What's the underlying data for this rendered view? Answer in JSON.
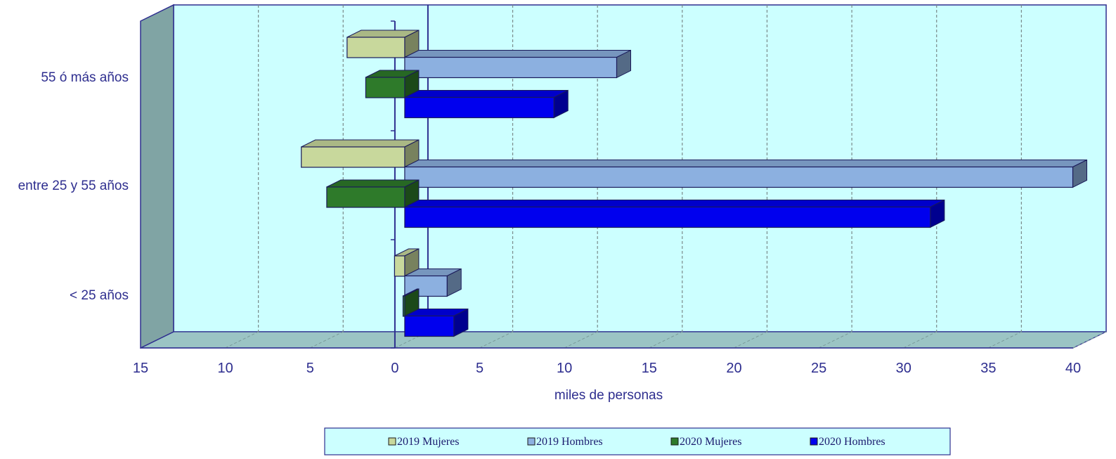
{
  "chart_data": {
    "type": "bar",
    "orientation": "horizontal",
    "style": "3d",
    "categories": [
      "55 ó más años",
      "entre 25 y 55 años",
      "< 25 años"
    ],
    "series": [
      {
        "name": "2019 Mujeres",
        "color": "#c8d89c",
        "values": [
          3.4,
          6.1,
          0.6
        ]
      },
      {
        "name": "2019 Hombres",
        "color": "#8cb0e0",
        "values": [
          12.5,
          39.4,
          2.5
        ]
      },
      {
        "name": "2020 Mujeres",
        "color": "#2e7a2a",
        "values": [
          2.3,
          4.6,
          0.1
        ]
      },
      {
        "name": "2020 Hombres",
        "color": "#0000ee",
        "values": [
          8.8,
          31.0,
          2.9
        ]
      }
    ],
    "negative_side_series": [
      "2019 Mujeres",
      "2020 Mujeres"
    ],
    "xlabel": "miles de personas",
    "xticks": [
      "15",
      "10",
      "5",
      "0",
      "5",
      "10",
      "15",
      "20",
      "25",
      "30",
      "35",
      "40"
    ],
    "xlim": [
      -15,
      40
    ],
    "grid": true,
    "legend_position": "bottom",
    "colors": {
      "plot_background": "#ccffff",
      "floor": "#9bc4c4",
      "wall": "#80a4a4",
      "axis": "#2e2e8f"
    }
  }
}
